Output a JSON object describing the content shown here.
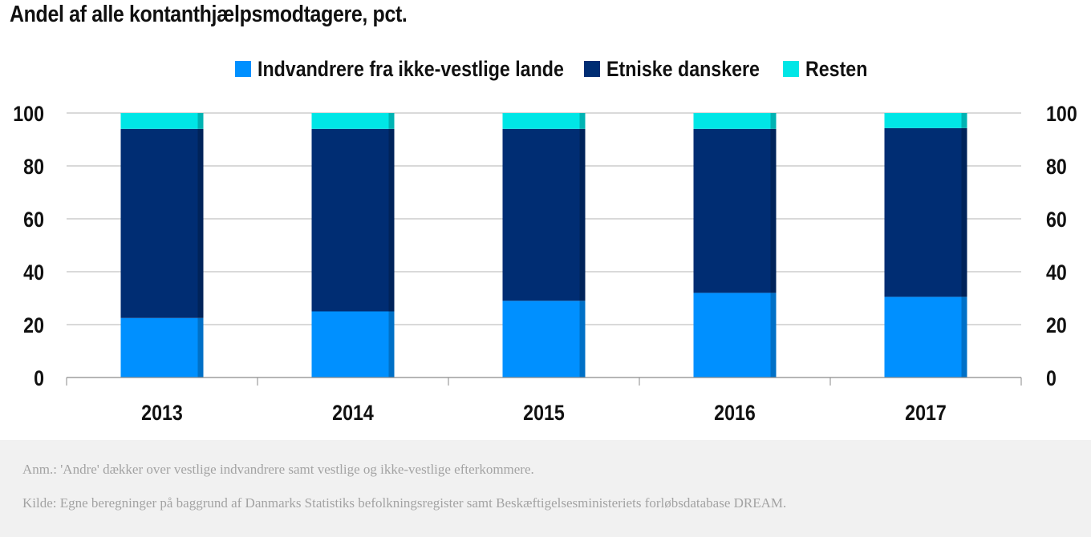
{
  "chart_data": {
    "type": "bar",
    "stacked": true,
    "title": "Andel af alle kontanthjælpsmodtagere, pct.",
    "categories": [
      "2013",
      "2014",
      "2015",
      "2016",
      "2017"
    ],
    "series": [
      {
        "name": "Indvandrere fra ikke-vestlige lande",
        "color": "#0090ff",
        "values": [
          22.5,
          25,
          29,
          32,
          30.5
        ]
      },
      {
        "name": "Etniske danskere",
        "color": "#002d73",
        "values": [
          71.5,
          69,
          65,
          62,
          63.8
        ]
      },
      {
        "name": "Resten",
        "color": "#00e6e6",
        "values": [
          6,
          6,
          6,
          6,
          5.7
        ]
      }
    ],
    "ylim": [
      0,
      100
    ],
    "yticks": [
      0,
      20,
      40,
      60,
      80,
      100
    ],
    "right_axis_ticks": [
      0,
      20,
      40,
      60,
      80,
      100
    ],
    "grid": true,
    "legend_position": "top-center",
    "xlabel": "",
    "ylabel": ""
  },
  "footer": {
    "note": "Anm.: 'Andre' dækker over vestlige indvandrere samt vestlige og ikke-vestlige efterkommere.",
    "source": "Kilde: Egne beregninger på baggrund af Danmarks Statistiks befolkningsregister samt Beskæftigelsesministeriets forløbsdatabase DREAM."
  }
}
